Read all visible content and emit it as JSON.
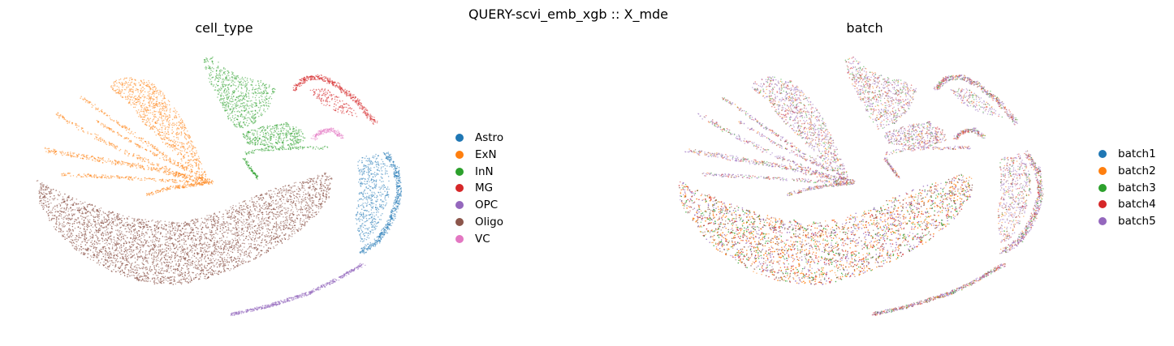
{
  "suptitle": "QUERY-scvi_emb_xgb :: X_mde",
  "chart_data": [
    {
      "type": "scatter",
      "title": "cell_type",
      "xlabel": "",
      "ylabel": "",
      "grid": false,
      "axes_visible": false,
      "legend_position": "right",
      "series": [
        {
          "name": "Astro",
          "color": "#1f77b4"
        },
        {
          "name": "ExN",
          "color": "#ff7f0e"
        },
        {
          "name": "InN",
          "color": "#2ca02c"
        },
        {
          "name": "MG",
          "color": "#d62728"
        },
        {
          "name": "OPC",
          "color": "#9467bd"
        },
        {
          "name": "Oligo",
          "color": "#8c564b"
        },
        {
          "name": "VC",
          "color": "#e377c2"
        }
      ]
    },
    {
      "type": "scatter",
      "title": "batch",
      "xlabel": "",
      "ylabel": "",
      "grid": false,
      "axes_visible": false,
      "legend_position": "right",
      "series": [
        {
          "name": "batch1",
          "color": "#1f77b4"
        },
        {
          "name": "batch2",
          "color": "#ff7f0e"
        },
        {
          "name": "batch3",
          "color": "#2ca02c"
        },
        {
          "name": "batch4",
          "color": "#d62728"
        },
        {
          "name": "batch5",
          "color": "#9467bd"
        }
      ]
    }
  ]
}
